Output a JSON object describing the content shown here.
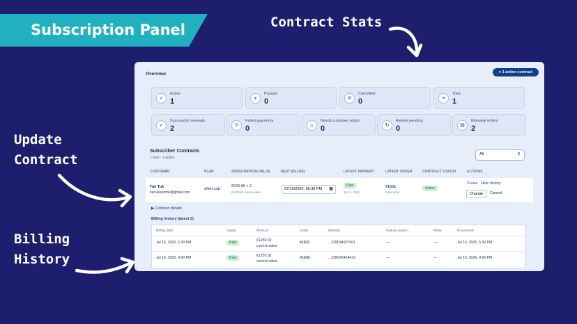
{
  "banner": {
    "title": "Subscription Panel"
  },
  "callouts": {
    "contract_stats": "Contract Stats",
    "update_contract": [
      "Update",
      "Contract"
    ],
    "billing_history": [
      "Billing",
      "History"
    ]
  },
  "overview": {
    "title": "Overview",
    "active_pill": "● 1 active contract",
    "stats_row1": [
      {
        "icon": "check-circle-icon",
        "glyph": "✓",
        "label": "Active",
        "value": "1"
      },
      {
        "icon": "pause-icon",
        "glyph": "⏸",
        "label": "Paused",
        "value": "0"
      },
      {
        "icon": "cancel-icon",
        "glyph": "⊘",
        "label": "Cancelled",
        "value": "0"
      },
      {
        "icon": "list-icon",
        "glyph": "≡",
        "label": "Total",
        "value": "1"
      }
    ],
    "stats_row2": [
      {
        "icon": "check-icon",
        "glyph": "✓",
        "label": "Successful renewals",
        "value": "2"
      },
      {
        "icon": "failed-icon",
        "glyph": "⊙",
        "label": "Failed payments",
        "value": "0"
      },
      {
        "icon": "warning-icon",
        "glyph": "△",
        "label": "Needs customer action",
        "value": "0"
      },
      {
        "icon": "retry-icon",
        "glyph": "↻",
        "label": "Retries pending",
        "value": "0"
      },
      {
        "icon": "order-icon",
        "glyph": "▤",
        "label": "Renewal orders",
        "value": "2"
      }
    ]
  },
  "subscribers": {
    "title": "Subscriber Contracts",
    "meta": "1 total · 1 active",
    "filter_value": "All",
    "columns": [
      "CUSTOMER",
      "PLAN",
      "SUBSCRIPTION VALUE",
      "NEXT BILLING",
      "LATEST PAYMENT",
      "LATEST ORDER",
      "CONTRACT STATUS",
      "ACTIONS"
    ],
    "row": {
      "customer_name": "Tuk Tuk",
      "customer_email": "fuktukisonthe@gmail.com",
      "plan": "offer1sub",
      "value": "€629.96 × 2",
      "value_sub": "€1259.92 current value",
      "next_billing": "07/16/2026, 05:30 PM",
      "payment_status": "Paid",
      "payment_date": "Jul 16, 2026",
      "order": "#1031",
      "order_sub": "Initial order",
      "status": "Active",
      "actions": {
        "pause": "Pause",
        "hide_history": "Hide history",
        "change": "Change",
        "cancel": "Cancel"
      }
    },
    "details_link": "▶ Contract details"
  },
  "billing": {
    "title": "Billing history (latest 2)",
    "columns": [
      "Billing date",
      "Status",
      "Amount",
      "Order",
      "Attempt",
      "Failure reason",
      "Retry",
      "Processed"
    ],
    "rows": [
      {
        "date": "Jul 16, 2026, 5:30 PM",
        "status": "Paid",
        "amount": "€1259.92",
        "amount_sub": "current value",
        "order": "#1031",
        "attempt": "...238034157661",
        "failure": "—",
        "retry": "—",
        "processed": "Jul 16, 2026, 5:30 PM"
      },
      {
        "date": "Jul 16, 2026, 4:00 PM",
        "status": "Paid",
        "amount": "€1259.92",
        "amount_sub": "current value",
        "order": "#1030",
        "attempt": "...238026424413",
        "failure": "—",
        "retry": "—",
        "processed": "Jul 16, 2026, 4:00 PM"
      }
    ]
  }
}
